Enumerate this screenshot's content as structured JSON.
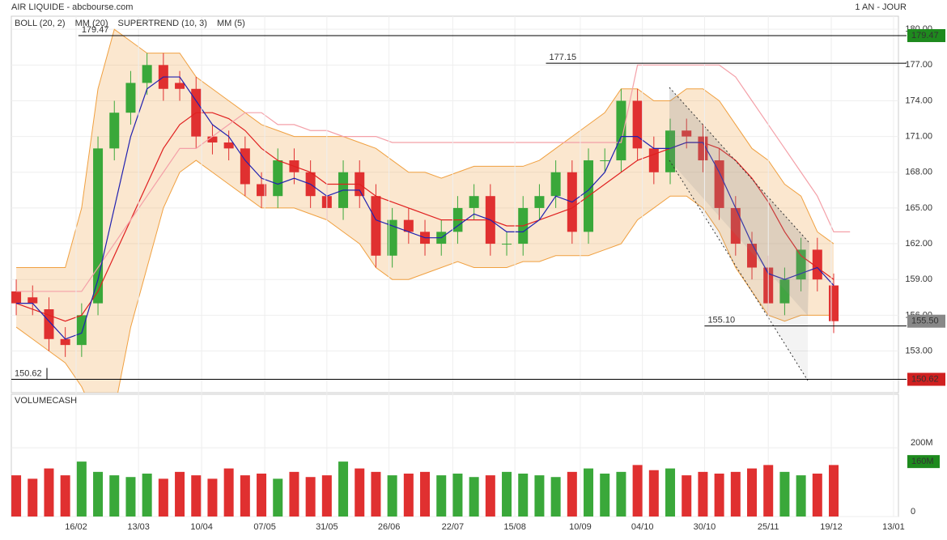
{
  "chart_data": {
    "type": "candlestick",
    "title": "AIR LIQUIDE - abcbourse.com",
    "period": "1 AN - JOUR",
    "xlim": [
      -0.3,
      53.96
    ],
    "xticks": [
      {
        "value": 3.66,
        "label": "16/02"
      },
      {
        "value": 7.48,
        "label": "13/03"
      },
      {
        "value": 11.34,
        "label": "10/04"
      },
      {
        "value": 15.2,
        "label": "07/05"
      },
      {
        "value": 19.0,
        "label": "31/05"
      },
      {
        "value": 22.8,
        "label": "26/06"
      },
      {
        "value": 26.7,
        "label": "22/07"
      },
      {
        "value": 30.5,
        "label": "15/08"
      },
      {
        "value": 34.5,
        "label": "10/09"
      },
      {
        "value": 38.3,
        "label": "04/10"
      },
      {
        "value": 42.1,
        "label": "30/10"
      },
      {
        "value": 46.0,
        "label": "25/11"
      },
      {
        "value": 49.85,
        "label": "19/12"
      },
      {
        "value": 53.66,
        "label": "13/01"
      }
    ],
    "ylim": [
      149.5,
      181.1
    ],
    "yticks": [
      {
        "value": 153,
        "label": "153.00"
      },
      {
        "value": 156,
        "label": "156.00"
      },
      {
        "value": 159,
        "label": "159.00"
      },
      {
        "value": 162,
        "label": "162.00"
      },
      {
        "value": 165,
        "label": "165.00"
      },
      {
        "value": 168,
        "label": "168.00"
      },
      {
        "value": 171,
        "label": "171.00"
      },
      {
        "value": 174,
        "label": "174.00"
      },
      {
        "value": 177,
        "label": "177.00"
      },
      {
        "value": 180,
        "label": "180.00"
      }
    ],
    "up_color": "#3aa83a",
    "down_color": "#e03030",
    "open": [
      158,
      157.5,
      156.5,
      154,
      153.5,
      157,
      170,
      173,
      175.5,
      177,
      175.5,
      175,
      171,
      170.5,
      170,
      167,
      166,
      169,
      168,
      166,
      165,
      168,
      166,
      161,
      164,
      163,
      162,
      163,
      165,
      166,
      162,
      162,
      165,
      166,
      168,
      163,
      169,
      169,
      174,
      170,
      168,
      171.5,
      171,
      169,
      165,
      162,
      160,
      157,
      159,
      161.5,
      158.5
    ],
    "high": [
      159,
      158.5,
      157.5,
      155,
      157,
      171,
      174,
      176.5,
      178,
      178,
      176.5,
      176,
      172,
      171.5,
      171,
      168,
      170,
      170,
      169,
      167,
      169,
      169,
      167,
      165,
      165,
      164,
      164,
      166,
      167,
      167,
      163,
      166,
      167,
      169,
      169,
      170,
      170,
      175,
      175,
      171,
      172.5,
      172.5,
      172,
      170,
      166,
      163,
      161,
      160,
      162.5,
      162.5,
      159.5
    ],
    "low": [
      156,
      156,
      153,
      152.5,
      152.5,
      156,
      169,
      172,
      174.5,
      174,
      174,
      170,
      169.5,
      169,
      166,
      165,
      165,
      167,
      165,
      164,
      164,
      165,
      160,
      160,
      162,
      161,
      161,
      162,
      164,
      161,
      161,
      161,
      164,
      165,
      162,
      162,
      168,
      168,
      169,
      167,
      167,
      170,
      168,
      164,
      161,
      159,
      156,
      156,
      158,
      158,
      154.5
    ],
    "close": [
      157,
      157,
      154,
      153.5,
      156,
      170,
      173,
      175.5,
      177,
      175,
      175,
      171,
      170.5,
      170,
      167,
      166,
      169,
      168,
      166,
      165,
      168,
      166,
      161,
      164,
      163,
      162,
      163,
      165,
      166,
      162,
      162,
      165,
      166,
      168,
      163,
      169,
      169,
      174,
      170,
      168,
      171.5,
      171,
      169,
      165,
      162,
      160,
      157,
      159,
      161.5,
      159,
      155.5
    ],
    "overlays": [
      {
        "name": "BOLL (20, 2)",
        "color": "#f0a040",
        "upper": [
          160,
          160,
          160,
          160,
          165,
          175,
          180,
          179,
          178,
          178,
          178,
          176,
          175,
          174,
          173,
          172,
          171.5,
          171,
          171,
          171,
          171,
          170.5,
          170,
          169,
          168,
          168,
          167.5,
          168,
          168.5,
          168.5,
          168.5,
          168.5,
          169,
          170,
          171,
          172,
          173,
          175,
          175,
          174,
          174,
          175,
          175,
          174,
          172,
          170,
          169,
          167,
          166,
          163,
          162
        ],
        "lower": [
          155,
          154,
          153,
          152,
          150,
          147,
          148,
          155,
          160,
          165,
          168,
          169,
          168,
          167,
          166,
          165,
          165,
          165,
          164.5,
          164,
          163,
          162,
          160,
          159,
          159,
          159.5,
          160,
          160.5,
          160,
          160,
          160,
          160.5,
          160.5,
          161,
          161,
          161,
          161.5,
          162,
          164,
          165,
          166,
          166,
          165,
          163,
          160,
          158,
          156,
          155.5,
          156,
          156,
          156
        ]
      },
      {
        "name": "MM (20)",
        "color": "#e02020",
        "values": [
          157,
          156.5,
          156,
          155.5,
          156,
          158,
          161,
          164,
          167,
          170,
          172,
          173,
          173,
          172.5,
          171.5,
          170,
          169,
          168.5,
          168,
          167,
          167,
          167,
          166,
          165.5,
          165,
          164.5,
          164,
          164,
          164,
          164,
          163.5,
          163.5,
          164,
          164.5,
          165,
          166,
          167,
          168,
          169,
          169.5,
          170,
          170.5,
          170.5,
          170,
          169,
          167.5,
          165.5,
          163,
          161,
          160,
          159
        ]
      },
      {
        "name": "SUPERTREND (10, 3)",
        "color": "#f4a0a8",
        "values": [
          158,
          158,
          158,
          158,
          158,
          160,
          162,
          164,
          166,
          168,
          170,
          170,
          171,
          172,
          173,
          173,
          172,
          172,
          171.5,
          171.5,
          171,
          171,
          171,
          170.5,
          170.5,
          170.5,
          170.5,
          170.5,
          170.5,
          170.5,
          170.5,
          170.5,
          170.5,
          170.5,
          170.5,
          170.5,
          170.5,
          170.5,
          177,
          177,
          177,
          177,
          177,
          177,
          176,
          174,
          172,
          170,
          168,
          166,
          163,
          163
        ]
      },
      {
        "name": "MM (5)",
        "color": "#2020b0",
        "values": [
          157,
          157,
          155.5,
          154,
          154.5,
          159,
          165,
          171,
          175,
          176,
          176,
          174,
          172,
          171,
          169,
          167.5,
          167,
          167.5,
          167,
          166,
          166.5,
          166.5,
          164,
          163.5,
          163,
          162.5,
          162.5,
          163.5,
          164.5,
          164,
          163,
          163,
          164,
          166,
          165.5,
          166.5,
          168,
          171,
          171,
          170,
          170,
          170.5,
          170.5,
          168,
          165,
          162,
          159.5,
          159,
          159.5,
          160,
          158.5
        ]
      }
    ],
    "levels": [
      {
        "value": 179.47,
        "label": "179.47",
        "start": 3.8
      },
      {
        "value": 177.15,
        "label": "177.15",
        "start": 32.4
      },
      {
        "value": 155.1,
        "label": "155.10",
        "start": 42.1
      },
      {
        "value": 150.62,
        "label": "150.62",
        "start": -0.3
      }
    ],
    "badges": [
      {
        "value": 179.47,
        "label": "179.47",
        "color": "#1e8a1e"
      },
      {
        "value": 155.5,
        "label": "155.50",
        "color": "#888888"
      },
      {
        "value": 150.62,
        "label": "150.62",
        "color": "#d02020"
      }
    ],
    "volume": {
      "name": "VOLUMECASH",
      "ylim": [
        0,
        356000000
      ],
      "yticks": [
        0,
        {
          "value": 200000000,
          "label": "200M"
        }
      ],
      "badge": {
        "value": 160000000,
        "label": "160M",
        "color": "#1e8a1e"
      },
      "values": [
        120000000,
        110000000,
        140000000,
        120000000,
        160000000,
        130000000,
        120000000,
        115000000,
        125000000,
        110000000,
        130000000,
        120000000,
        110000000,
        140000000,
        120000000,
        125000000,
        110000000,
        130000000,
        115000000,
        120000000,
        160000000,
        140000000,
        130000000,
        120000000,
        125000000,
        130000000,
        120000000,
        125000000,
        115000000,
        120000000,
        130000000,
        125000000,
        120000000,
        115000000,
        130000000,
        140000000,
        125000000,
        130000000,
        150000000,
        135000000,
        140000000,
        120000000,
        130000000,
        125000000,
        130000000,
        140000000,
        150000000,
        130000000,
        120000000,
        125000000,
        150000000
      ]
    }
  }
}
